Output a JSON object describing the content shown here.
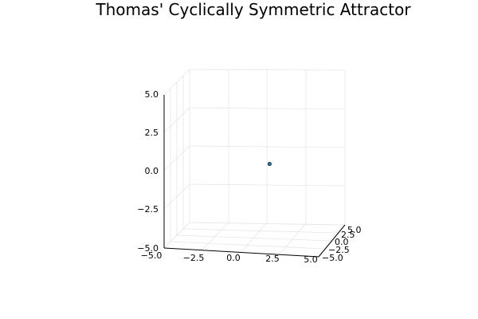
{
  "chart_data": {
    "type": "scatter",
    "title": "Thomas' Cyclically Symmetric Attractor",
    "xlabel": "",
    "ylabel": "",
    "zlabel": "",
    "xlim": [
      -5,
      5
    ],
    "ylim": [
      -5,
      5
    ],
    "zlim": [
      -5,
      5
    ],
    "x_ticks": [
      "−5.0",
      "−2.5",
      "0.0",
      "2.5",
      "5.0"
    ],
    "y_ticks": [
      "−5.0",
      "−2.5",
      "0.0",
      "2.5",
      "5.0"
    ],
    "z_ticks": [
      "−5.0",
      "−2.5",
      "0.0",
      "2.5",
      "5.0"
    ],
    "grid": true,
    "legend": "none",
    "marker_color": "#1f77b4",
    "series": [
      {
        "x": [
          1.0
        ],
        "y": [
          0.0
        ],
        "z": [
          0.0
        ]
      }
    ]
  }
}
